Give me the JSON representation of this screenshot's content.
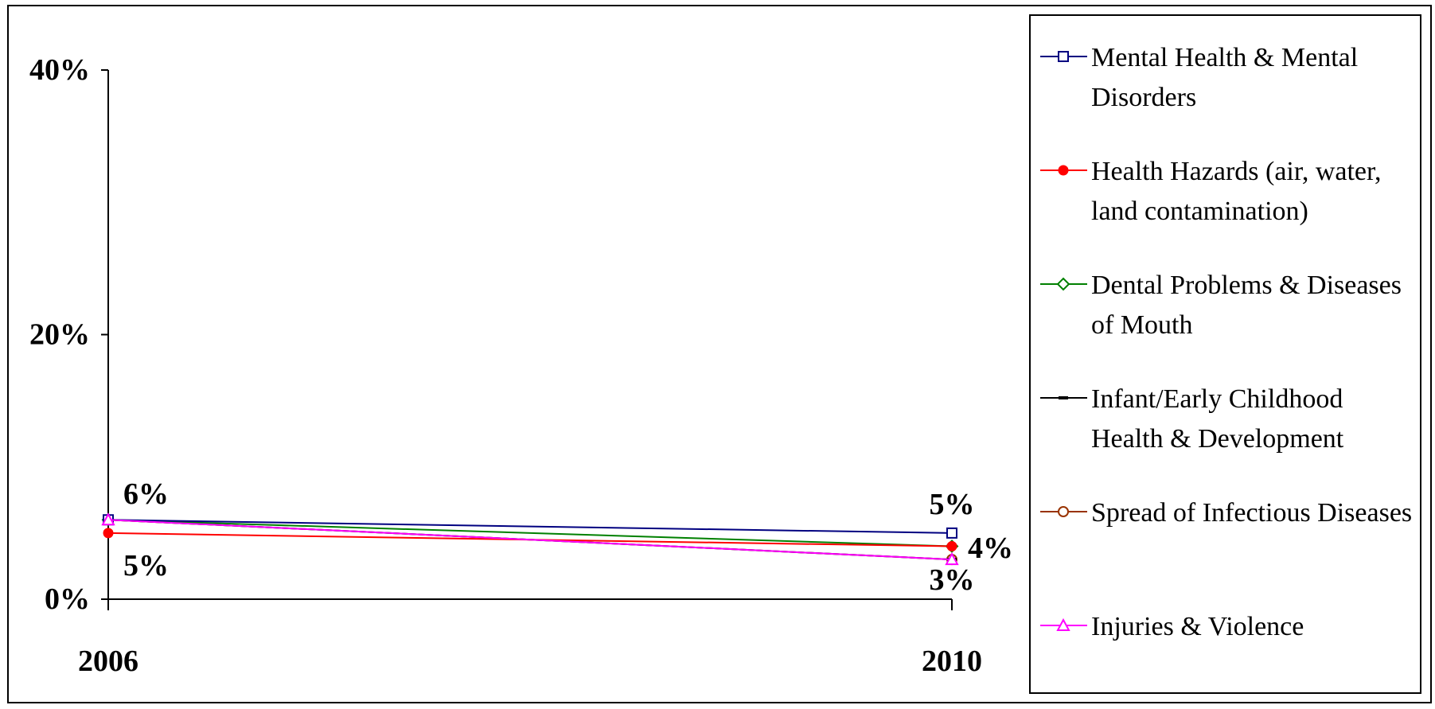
{
  "chart_data": {
    "type": "line",
    "x": [
      "2006",
      "2010"
    ],
    "ylim": [
      0,
      40
    ],
    "y_ticks": [
      0,
      20,
      40
    ],
    "y_tick_labels": [
      "0%",
      "20%",
      "40%"
    ],
    "legend_position": "right",
    "series": [
      {
        "name": "Mental Health & Mental Disorders",
        "values": [
          6,
          5
        ],
        "color": "#000080",
        "marker": "square-open"
      },
      {
        "name": "Health Hazards (air, water, land contamination)",
        "values": [
          5,
          4
        ],
        "color": "#FF0000",
        "marker": "circle-filled"
      },
      {
        "name": "Dental Problems & Diseases of Mouth",
        "values": [
          6,
          4
        ],
        "color": "#008000",
        "marker": "diamond-open"
      },
      {
        "name": "Infant/Early Childhood Health & Development",
        "values": [
          6,
          3
        ],
        "color": "#000000",
        "marker": "dash"
      },
      {
        "name": "Spread of Infectious Diseases",
        "values": [
          6,
          3
        ],
        "color": "#993300",
        "marker": "circle-open"
      },
      {
        "name": "Injuries & Violence",
        "values": [
          6,
          3
        ],
        "color": "#FF00FF",
        "marker": "triangle-open"
      }
    ],
    "data_labels": [
      {
        "x": "2006",
        "text": "6%"
      },
      {
        "x": "2006",
        "text": "5%"
      },
      {
        "x": "2010",
        "text": "5%"
      },
      {
        "x": "2010",
        "text": "4%"
      },
      {
        "x": "2010",
        "text": "3%"
      }
    ]
  }
}
